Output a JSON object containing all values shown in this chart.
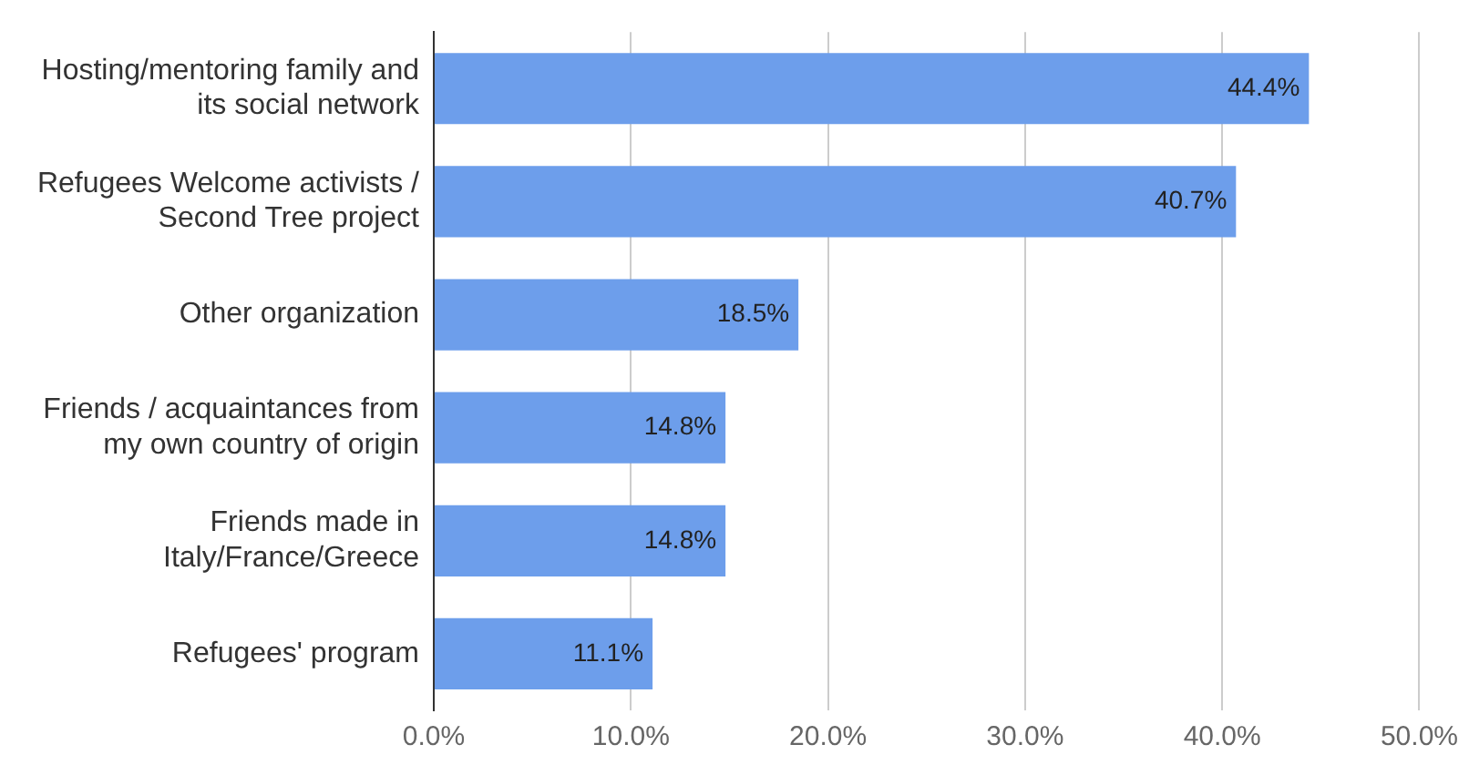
{
  "chart_data": {
    "type": "bar",
    "orientation": "horizontal",
    "categories": [
      "Hosting/mentoring family and its social network",
      "Refugees Welcome activists / Second Tree project",
      "Other organization",
      "Friends / acquaintances from my own country of origin",
      "Friends made in Italy/France/Greece",
      "Refugees' program"
    ],
    "values": [
      44.4,
      40.7,
      18.5,
      14.8,
      14.8,
      11.1
    ],
    "value_labels": [
      "44.4%",
      "40.7%",
      "18.5%",
      "14.8%",
      "14.8%",
      "11.1%"
    ],
    "color": "#6d9eeb",
    "xlim": [
      0,
      50
    ],
    "xticks": [
      {
        "value": 0,
        "label": "0.0%"
      },
      {
        "value": 10,
        "label": "10.0%"
      },
      {
        "value": 20,
        "label": "20.0%"
      },
      {
        "value": 30,
        "label": "30.0%"
      },
      {
        "value": 40,
        "label": "40.0%"
      },
      {
        "value": 50,
        "label": "50.0%"
      }
    ],
    "grid": "x"
  }
}
